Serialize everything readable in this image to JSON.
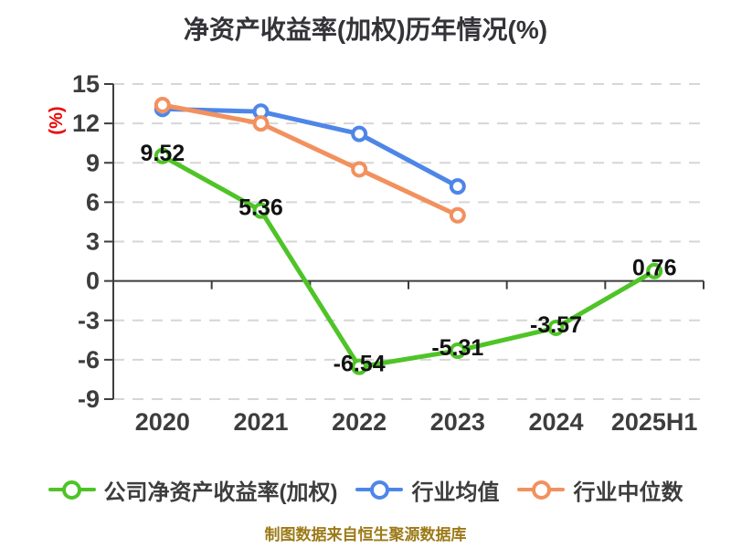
{
  "colors": {
    "company": "#4ec427",
    "industry_avg": "#4e86e8",
    "industry_median": "#f2915e",
    "axis": "#3d3d3d",
    "grid": "#d6d6d6",
    "tick_label": "#3d3d3d",
    "value_label": "#121212",
    "title": "#333338",
    "unit_label": "#ec0000",
    "footer": "#9c7a18",
    "marker_fill": "#ffffff"
  },
  "chart_data": {
    "type": "line",
    "title": "净资产收益率(加权)历年情况(%)",
    "ylabel": "(%)",
    "xlabel": "",
    "categories": [
      "2020",
      "2021",
      "2022",
      "2023",
      "2024",
      "2025H1"
    ],
    "series": [
      {
        "name": "公司净资产收益率(加权)",
        "color_key": "company",
        "values": [
          9.52,
          5.36,
          -6.54,
          -5.31,
          -3.57,
          0.76
        ],
        "point_labels": [
          "9.52",
          "5.36",
          "-6.54",
          "-5.31",
          "-3.57",
          "0.76"
        ],
        "labeled": true
      },
      {
        "name": "行业均值",
        "color_key": "industry_avg",
        "values": [
          13.1,
          12.9,
          11.2,
          7.2,
          null,
          null
        ],
        "labeled": false
      },
      {
        "name": "行业中位数",
        "color_key": "industry_median",
        "values": [
          13.4,
          12.0,
          8.5,
          5.0,
          null,
          null
        ],
        "labeled": false
      }
    ],
    "ylim": [
      -9,
      15
    ],
    "ytick_step": 3,
    "grid": "horizontal-dashed",
    "legend_position": "bottom",
    "source_note": "制图数据来自恒生聚源数据库"
  }
}
